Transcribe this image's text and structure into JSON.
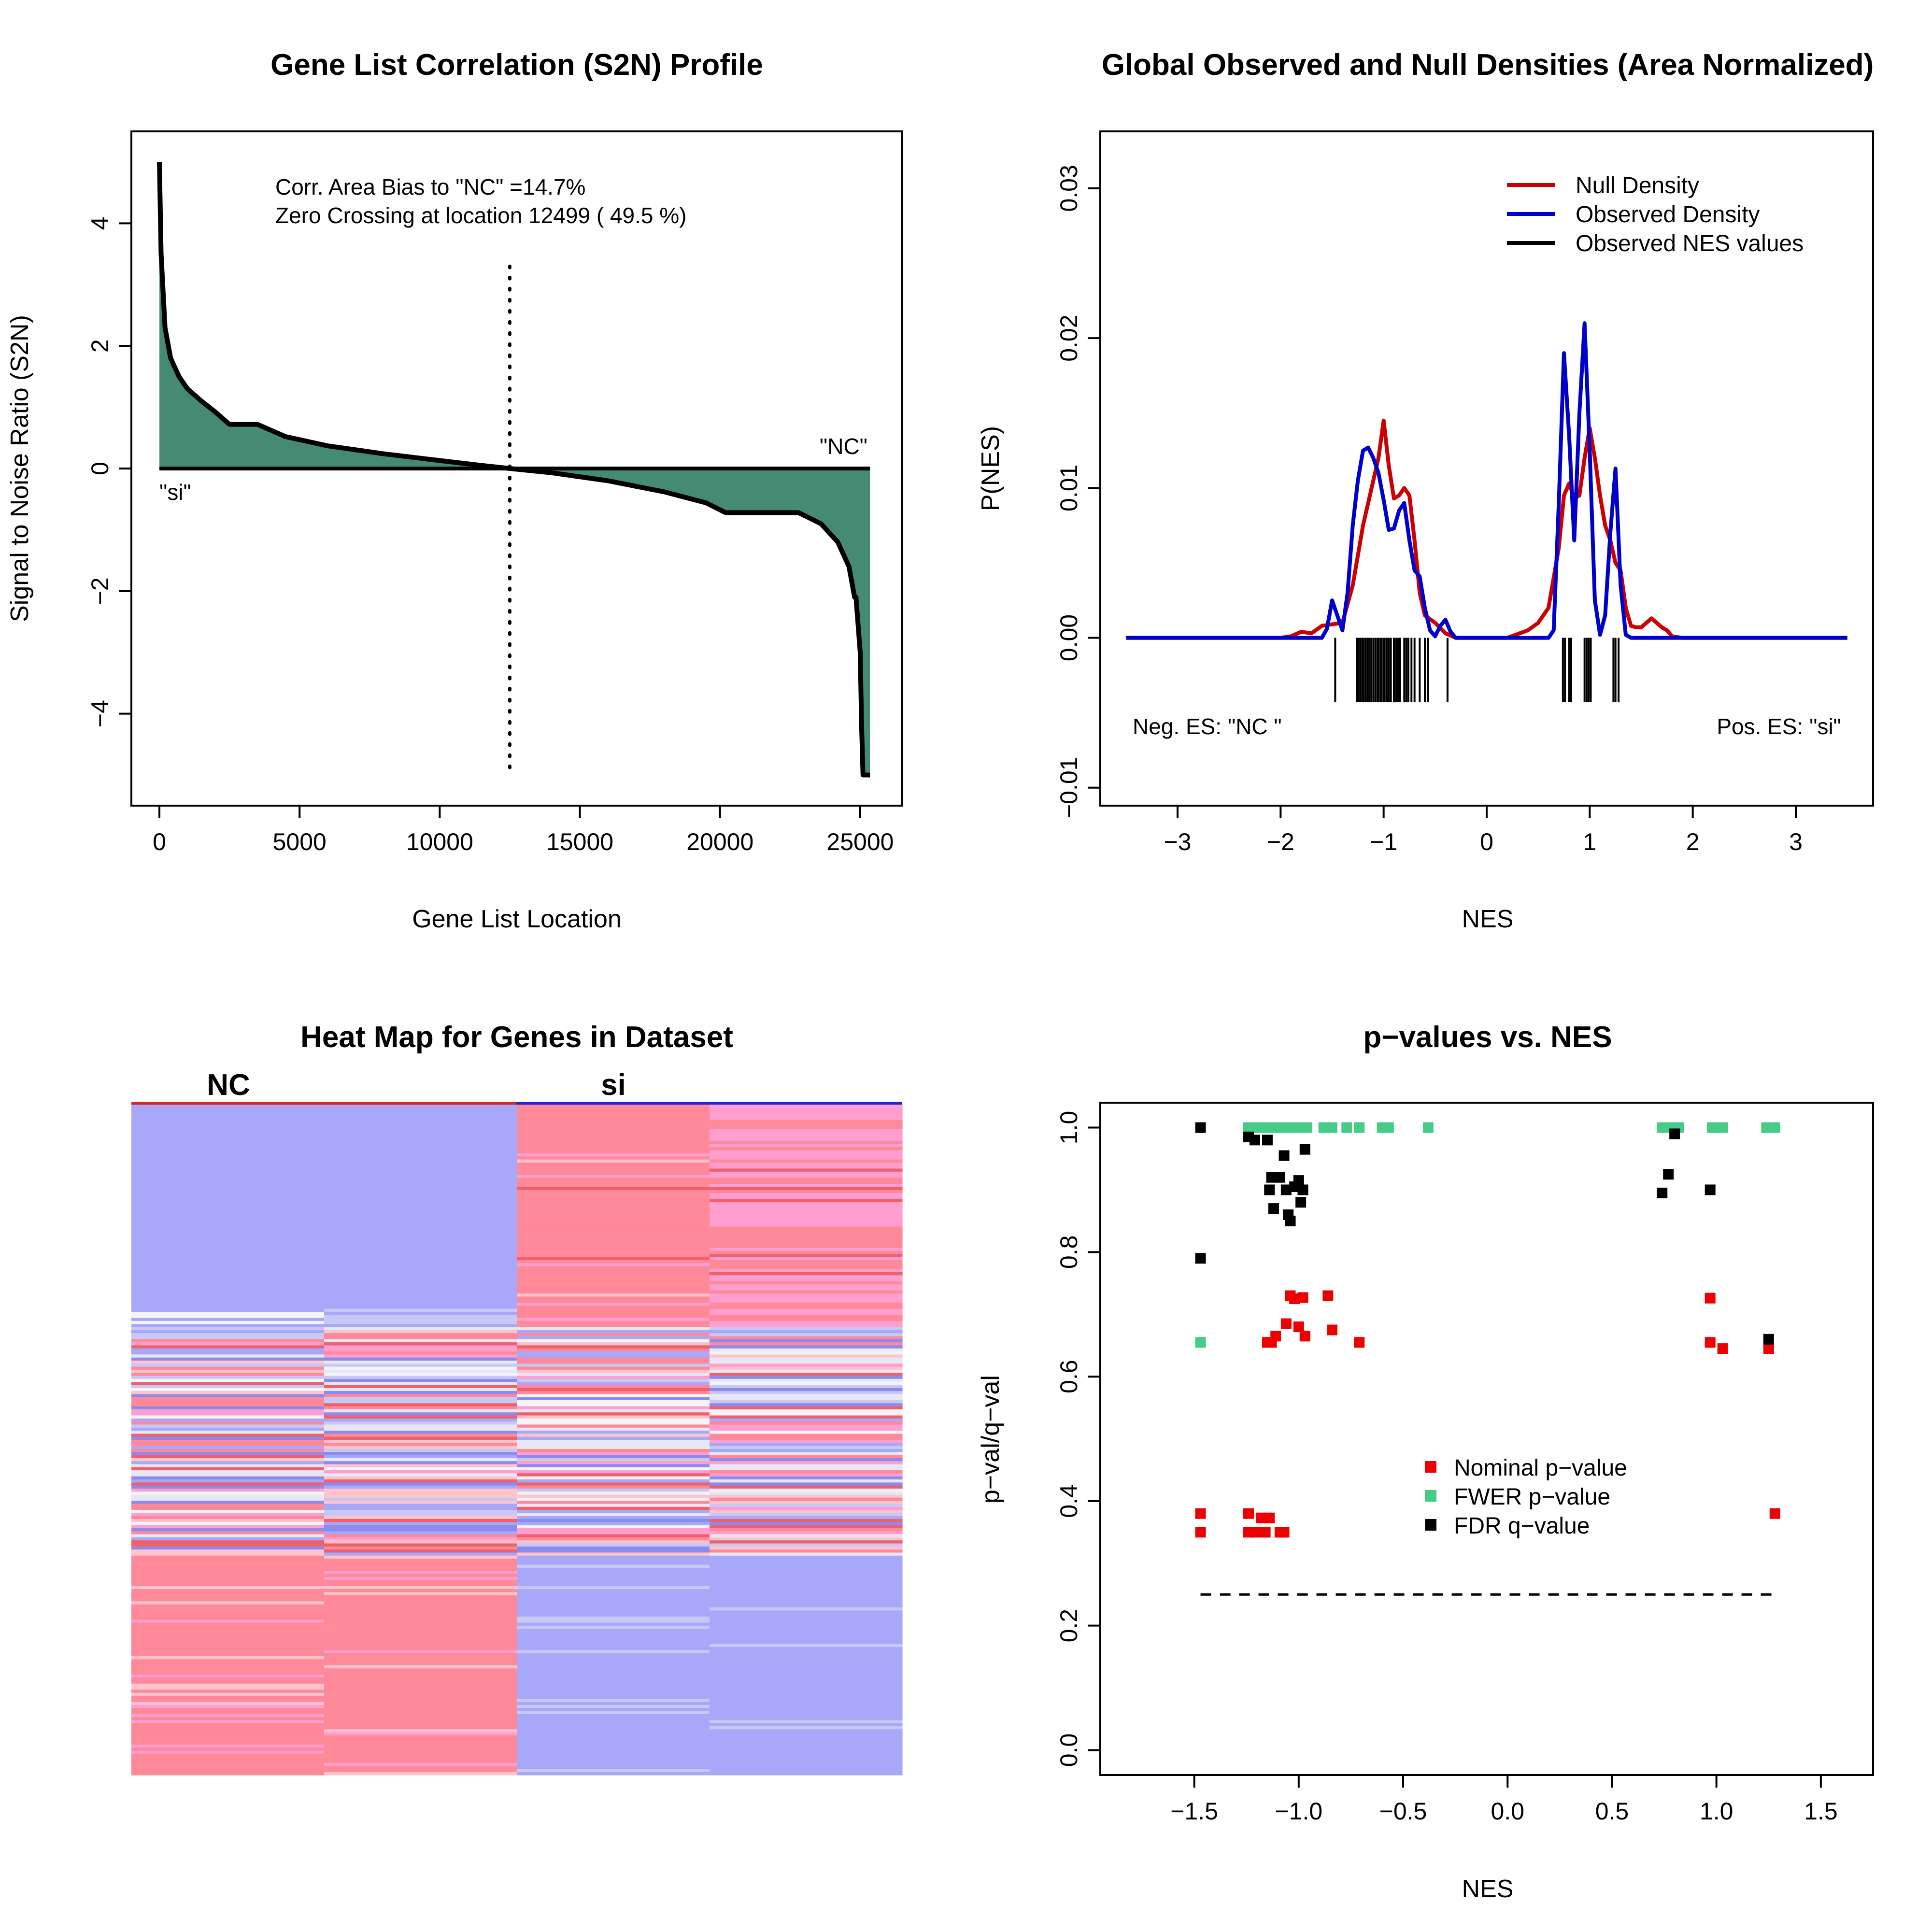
{
  "figure": {
    "background": "#ffffff"
  },
  "chart_data": [
    {
      "id": "s2n_profile",
      "type": "area",
      "title": "Gene List Correlation (S2N) Profile",
      "xlabel": "Gene List Location",
      "ylabel": "Signal to Noise Ratio (S2N)",
      "xlim": [
        -1000,
        26500
      ],
      "ylim": [
        -5.5,
        5.5
      ],
      "xticks": [
        0,
        5000,
        10000,
        15000,
        20000,
        25000
      ],
      "yticks": [
        -4,
        -2,
        0,
        2,
        4
      ],
      "fill_color": "#458b74",
      "curve": {
        "x": [
          0,
          60,
          200,
          400,
          700,
          1000,
          1500,
          2000,
          2500,
          3500,
          4500,
          6000,
          8000,
          10000,
          11500,
          12499,
          14000,
          16000,
          18000,
          19500,
          20200,
          21000,
          22800,
          23600,
          24200,
          24600,
          24800,
          24850,
          25000,
          25050,
          25100,
          25350
        ],
        "y": [
          5.0,
          3.5,
          2.3,
          1.8,
          1.5,
          1.3,
          1.1,
          0.92,
          0.72,
          0.72,
          0.52,
          0.37,
          0.24,
          0.13,
          0.05,
          0.0,
          -0.07,
          -0.2,
          -0.38,
          -0.56,
          -0.72,
          -0.72,
          -0.72,
          -0.9,
          -1.2,
          -1.6,
          -2.1,
          -2.1,
          -3.0,
          -4.2,
          -5.0,
          -5.0
        ]
      },
      "zero_crossing": 12499,
      "annotations": {
        "bias": "Corr. Area Bias to \"NC\" =14.7%",
        "crossing": "Zero Crossing at location  12499  ( 49.5  %)",
        "left_label": "\"si\"",
        "right_label": "\"NC\""
      }
    },
    {
      "id": "nes_densities",
      "type": "line",
      "title": "Global Observed and Null Densities (Area Normalized)",
      "xlabel": "NES",
      "ylabel": "P(NES)",
      "xlim": [
        -3.75,
        3.75
      ],
      "ylim": [
        -0.0112,
        0.0338
      ],
      "xticks": [
        -3,
        -2,
        -1,
        0,
        1,
        2,
        3
      ],
      "yticks": [
        -0.01,
        0.0,
        0.01,
        0.02,
        0.03
      ],
      "ytick_labels": [
        "−0.01",
        "0.00",
        "0.01",
        "0.02",
        "0.03"
      ],
      "series": [
        {
          "name": "Null Density",
          "color": "#cc0000",
          "x": [
            -3.5,
            -2.0,
            -1.9,
            -1.8,
            -1.7,
            -1.6,
            -1.5,
            -1.4,
            -1.3,
            -1.2,
            -1.1,
            -1.05,
            -1.0,
            -0.95,
            -0.9,
            -0.85,
            -0.8,
            -0.75,
            -0.7,
            -0.65,
            -0.6,
            -0.5,
            -0.4,
            -0.3,
            -0.2,
            0.0,
            0.2,
            0.4,
            0.5,
            0.6,
            0.7,
            0.75,
            0.8,
            0.85,
            0.9,
            0.95,
            1.0,
            1.05,
            1.1,
            1.15,
            1.2,
            1.25,
            1.3,
            1.35,
            1.4,
            1.45,
            1.5,
            1.55,
            1.6,
            1.65,
            1.7,
            1.75,
            1.8,
            1.9,
            3.5
          ],
          "y": [
            0.0,
            0.0,
            0.0001,
            0.0004,
            0.0003,
            0.0008,
            0.0009,
            0.001,
            0.0035,
            0.0075,
            0.0105,
            0.012,
            0.0145,
            0.0115,
            0.0093,
            0.0095,
            0.01,
            0.0095,
            0.0065,
            0.003,
            0.0015,
            0.001,
            0.0003,
            0.0,
            0.0,
            0.0,
            0.0,
            0.0005,
            0.001,
            0.002,
            0.006,
            0.0095,
            0.0103,
            0.0093,
            0.0095,
            0.012,
            0.014,
            0.012,
            0.0095,
            0.0075,
            0.0065,
            0.005,
            0.0045,
            0.002,
            0.0008,
            0.0007,
            0.0007,
            0.001,
            0.0013,
            0.001,
            0.0007,
            0.0005,
            0.0001,
            0.0,
            0.0
          ]
        },
        {
          "name": "Observed Density",
          "color": "#0000cc",
          "x": [
            -3.5,
            -1.6,
            -1.55,
            -1.5,
            -1.45,
            -1.4,
            -1.35,
            -1.3,
            -1.25,
            -1.2,
            -1.15,
            -1.1,
            -1.05,
            -1.0,
            -0.95,
            -0.9,
            -0.85,
            -0.8,
            -0.75,
            -0.7,
            -0.65,
            -0.6,
            -0.55,
            -0.5,
            -0.45,
            -0.4,
            -0.35,
            -0.3,
            -0.25,
            -0.2,
            0.6,
            0.65,
            0.7,
            0.75,
            0.8,
            0.85,
            0.9,
            0.95,
            1.0,
            1.05,
            1.1,
            1.15,
            1.2,
            1.25,
            1.3,
            1.35,
            1.4,
            3.5
          ],
          "y": [
            0.0,
            0.0,
            0.0006,
            0.0025,
            0.0015,
            0.0005,
            0.003,
            0.0075,
            0.0105,
            0.0125,
            0.0127,
            0.012,
            0.011,
            0.0092,
            0.0072,
            0.0073,
            0.0085,
            0.009,
            0.0065,
            0.0045,
            0.0041,
            0.002,
            0.0005,
            0.0001,
            0.0008,
            0.0012,
            0.0004,
            0.0,
            0.0,
            0.0,
            0.0,
            0.0005,
            0.009,
            0.019,
            0.0135,
            0.0065,
            0.015,
            0.021,
            0.0125,
            0.0025,
            0.0002,
            0.0015,
            0.007,
            0.0113,
            0.0035,
            0.0002,
            0.0,
            0.0
          ]
        }
      ],
      "rug": {
        "name": "Observed NES values",
        "color": "#000000",
        "values": [
          -1.47,
          -1.26,
          -1.24,
          -1.22,
          -1.2,
          -1.18,
          -1.16,
          -1.14,
          -1.12,
          -1.1,
          -1.08,
          -1.06,
          -1.05,
          -1.03,
          -1.02,
          -1.0,
          -0.99,
          -0.97,
          -0.95,
          -0.93,
          -0.9,
          -0.88,
          -0.86,
          -0.84,
          -0.8,
          -0.78,
          -0.76,
          -0.73,
          -0.7,
          -0.65,
          -0.6,
          -0.57,
          -0.38,
          0.74,
          0.76,
          0.8,
          0.82,
          0.95,
          0.97,
          0.99,
          1.01,
          1.23,
          1.25,
          1.28
        ],
        "y0": 0.0,
        "y1": -0.0043
      },
      "legend_position": "top-right",
      "annotations": {
        "neg": "Neg. ES: \"NC \"",
        "pos": "Pos. ES: \"si\""
      }
    },
    {
      "id": "heatmap",
      "type": "heatmap",
      "title": "Heat Map for Genes in Dataset",
      "columns": [
        "NC",
        "NC",
        "si",
        "si"
      ],
      "group_labels": [
        "NC",
        "si"
      ],
      "group_colors": [
        "#dd2222",
        "#2222dd"
      ],
      "colors": {
        "high": "#ff8899",
        "high_pink": "#ff9ecf",
        "mid_high": "#ffc3cc",
        "neutral": "#e8e8f4",
        "mid_low": "#c8c8f4",
        "low": "#a8a8fa",
        "low_strong": "#8a8af0",
        "red_strong": "#f0606a",
        "white": "#f4f4f8"
      }
    },
    {
      "id": "pvalues",
      "type": "scatter",
      "title": "p−values vs. NES",
      "xlabel": "NES",
      "ylabel": "p−val/q−val",
      "xlim": [
        -1.95,
        1.75
      ],
      "ylim": [
        -0.04,
        1.04
      ],
      "xticks": [
        -1.5,
        -1.0,
        -0.5,
        0.0,
        0.5,
        1.0,
        1.5
      ],
      "xtick_labels": [
        "−1.5",
        "−1.0",
        "−0.5",
        "0.0",
        "0.5",
        "1.0",
        "1.5"
      ],
      "yticks": [
        0.0,
        0.2,
        0.4,
        0.6,
        0.8,
        1.0
      ],
      "ytick_labels": [
        "0.0",
        "0.2",
        "0.4",
        "0.6",
        "0.8",
        "1.0"
      ],
      "threshold": 0.25,
      "legend_position": "center",
      "series": [
        {
          "name": "Nominal p−value",
          "color": "#ee0000",
          "points": [
            [
              -1.47,
              0.38
            ],
            [
              -1.47,
              0.35
            ],
            [
              -1.24,
              0.38
            ],
            [
              -1.24,
              0.35
            ],
            [
              -1.21,
              0.35
            ],
            [
              -1.18,
              0.373
            ],
            [
              -1.16,
              0.35
            ],
            [
              -1.14,
              0.373
            ],
            [
              -1.09,
              0.35
            ],
            [
              -1.07,
              0.35
            ],
            [
              -1.15,
              0.655
            ],
            [
              -1.13,
              0.655
            ],
            [
              -1.11,
              0.665
            ],
            [
              -1.06,
              0.685
            ],
            [
              -1.04,
              0.73
            ],
            [
              -1.02,
              0.725
            ],
            [
              -1.0,
              0.68
            ],
            [
              -0.98,
              0.727
            ],
            [
              -0.97,
              0.665
            ],
            [
              -0.86,
              0.73
            ],
            [
              -0.84,
              0.675
            ],
            [
              -0.71,
              0.655
            ],
            [
              0.97,
              0.726
            ],
            [
              0.97,
              0.655
            ],
            [
              1.03,
              0.645
            ],
            [
              1.25,
              0.645
            ],
            [
              1.28,
              0.38
            ]
          ]
        },
        {
          "name": "FWER p−value",
          "color": "#44cc88",
          "points": [
            [
              -1.47,
              0.655
            ],
            [
              -1.24,
              1.0
            ],
            [
              -1.2,
              1.0
            ],
            [
              -1.16,
              1.0
            ],
            [
              -1.12,
              1.0
            ],
            [
              -1.08,
              1.0
            ],
            [
              -1.04,
              1.0
            ],
            [
              -1.0,
              1.0
            ],
            [
              -0.96,
              1.0
            ],
            [
              -0.88,
              1.0
            ],
            [
              -0.84,
              1.0
            ],
            [
              -0.77,
              1.0
            ],
            [
              -0.71,
              1.0
            ],
            [
              -0.6,
              1.0
            ],
            [
              -0.57,
              1.0
            ],
            [
              -0.38,
              1.0
            ],
            [
              0.74,
              1.0
            ],
            [
              0.78,
              1.0
            ],
            [
              0.82,
              1.0
            ],
            [
              0.98,
              1.0
            ],
            [
              1.0,
              1.0
            ],
            [
              1.03,
              1.0
            ],
            [
              1.24,
              1.0
            ],
            [
              1.28,
              1.0
            ]
          ]
        },
        {
          "name": "FDR q−value",
          "color": "#000000",
          "points": [
            [
              -1.47,
              1.0
            ],
            [
              -1.47,
              0.79
            ],
            [
              -1.24,
              0.985
            ],
            [
              -1.21,
              0.98
            ],
            [
              -1.15,
              0.98
            ],
            [
              -1.14,
              0.9
            ],
            [
              -1.13,
              0.92
            ],
            [
              -1.12,
              0.87
            ],
            [
              -1.09,
              0.92
            ],
            [
              -1.07,
              0.955
            ],
            [
              -1.06,
              0.9
            ],
            [
              -1.05,
              0.86
            ],
            [
              -1.04,
              0.85
            ],
            [
              -1.02,
              0.905
            ],
            [
              -1.0,
              0.915
            ],
            [
              -0.99,
              0.88
            ],
            [
              -0.98,
              0.9
            ],
            [
              -0.97,
              0.965
            ],
            [
              0.74,
              0.895
            ],
            [
              0.77,
              0.925
            ],
            [
              0.8,
              0.99
            ],
            [
              0.97,
              0.9
            ],
            [
              1.25,
              0.66
            ]
          ]
        }
      ]
    }
  ]
}
